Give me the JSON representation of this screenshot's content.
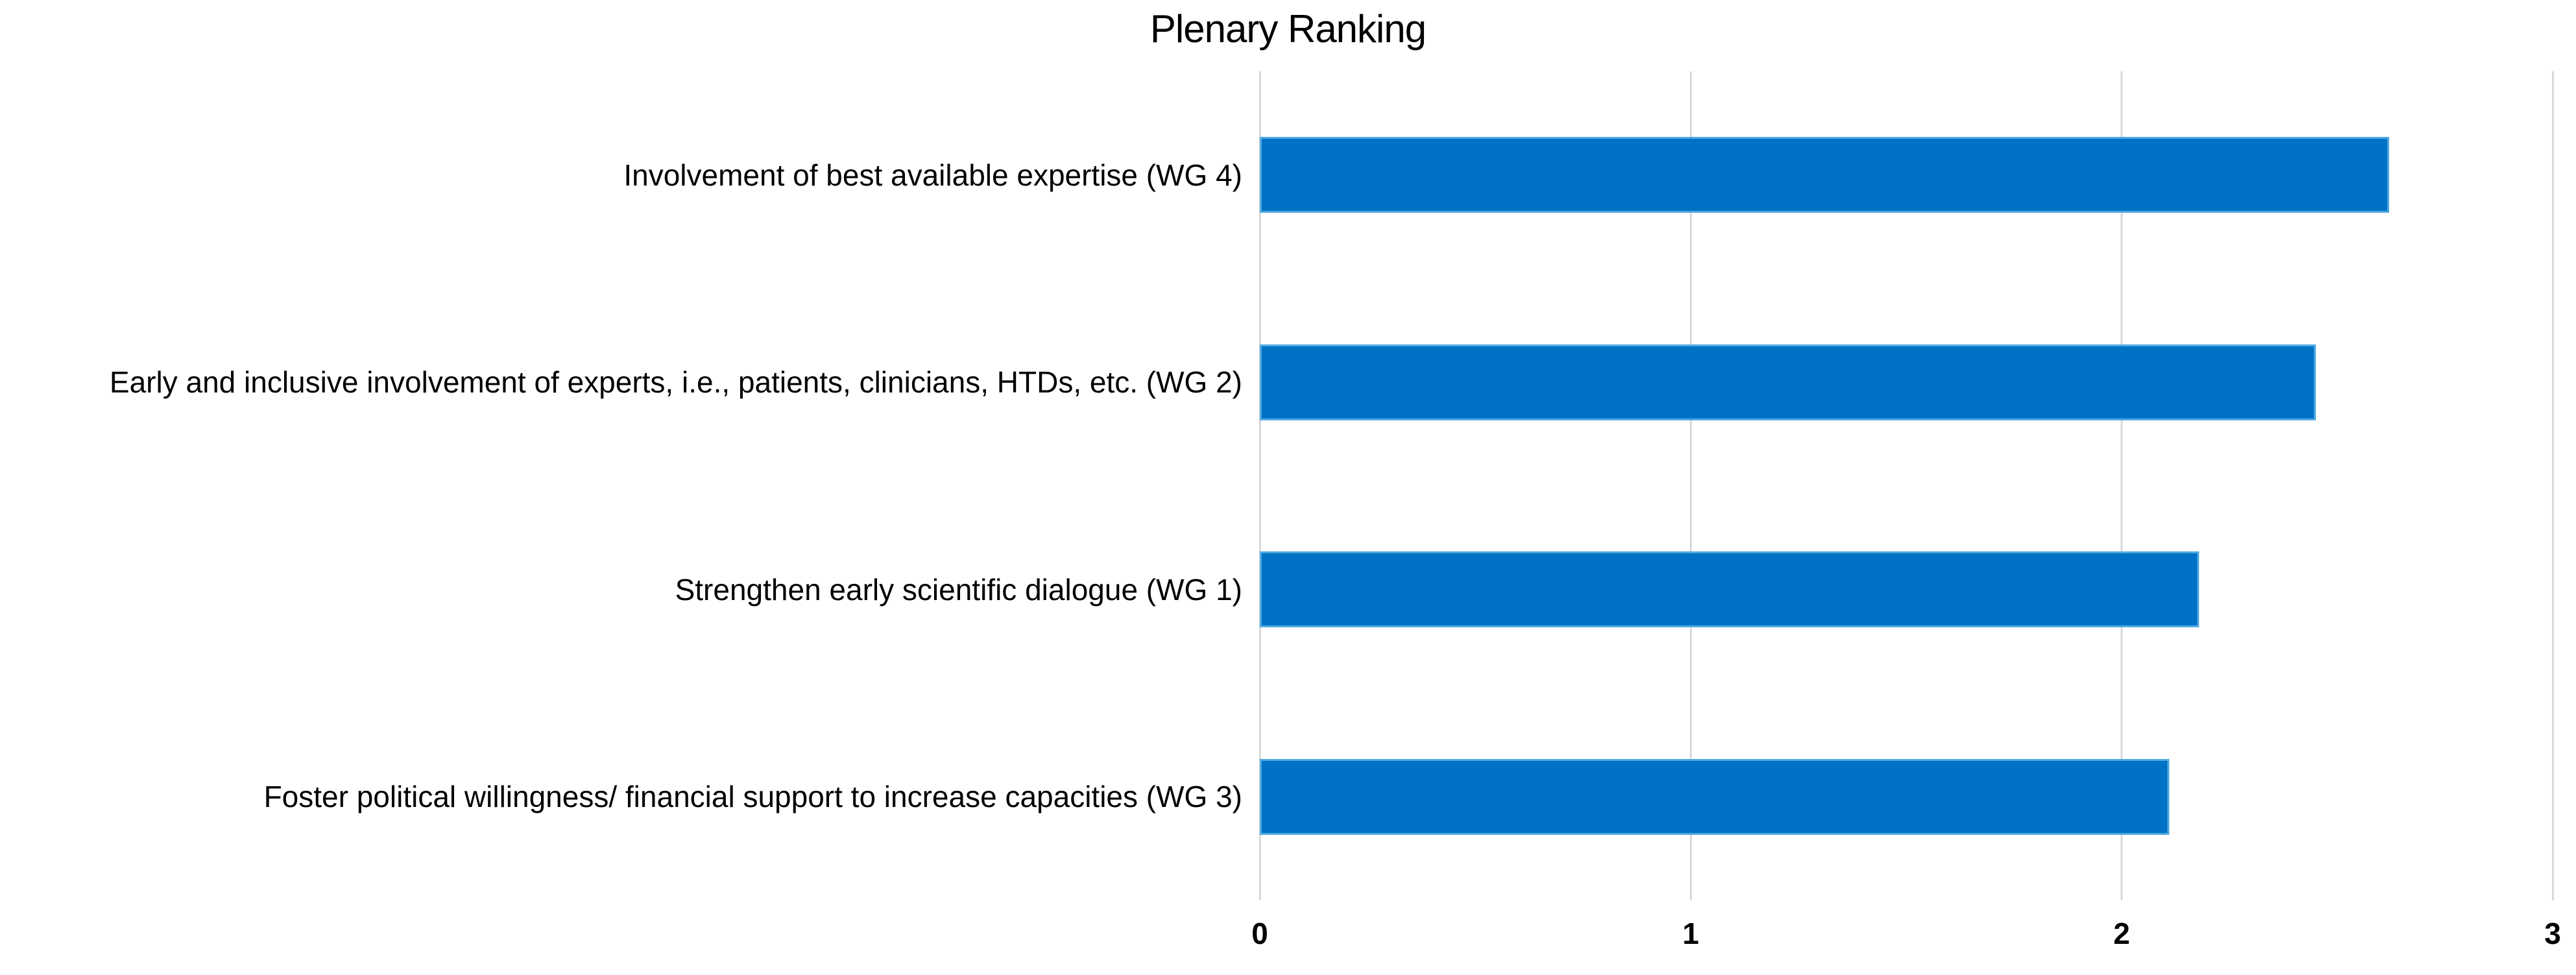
{
  "chart_data": {
    "type": "bar",
    "orientation": "horizontal",
    "title": "Plenary Ranking",
    "categories": [
      "Involvement of best available expertise (WG 4)",
      "Early and inclusive involvement of experts, i.e., patients, clinicians, HTDs, etc. (WG 2)",
      "Strengthen early scientific dialogue (WG 1)",
      "Foster political willingness/ financial support to increase capacities (WG 3)"
    ],
    "values": [
      2.62,
      2.45,
      2.18,
      2.11
    ],
    "xlabel": "",
    "ylabel": "",
    "xlim": [
      0,
      3
    ],
    "xticks": [
      "0",
      "1",
      "2",
      "3"
    ],
    "grid": true,
    "legend": false,
    "colors": {
      "bar_fill": "#0072C6",
      "bar_edge": "#4DA9E2",
      "gridline": "#D9D9D9",
      "text": "#000000"
    }
  }
}
